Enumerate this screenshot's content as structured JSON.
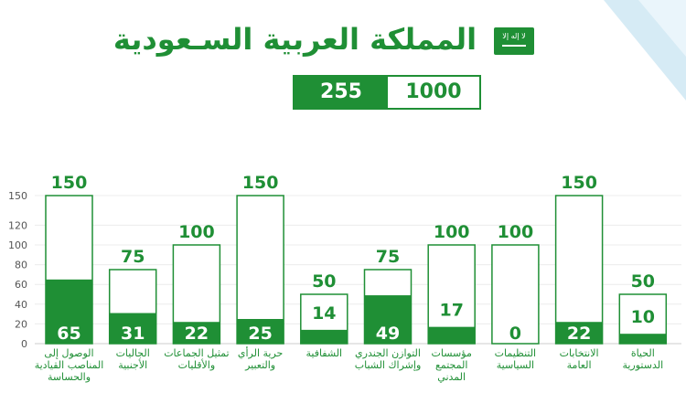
{
  "header": {
    "title": "المملكة العربية السـعودية",
    "flag_script": "لا إله إلا الله محمد رسول الله",
    "totals": {
      "seats": "255",
      "max": "1000"
    }
  },
  "colors": {
    "accent": "#1f8f35",
    "outline": "#1f8f35",
    "corner": "#d6ebf5"
  },
  "chart_data": {
    "type": "bar",
    "title": "",
    "xlabel": "",
    "ylabel": "",
    "ylim": [
      0,
      150
    ],
    "yticks": [
      0,
      20,
      40,
      60,
      80,
      100,
      120,
      150
    ],
    "categories": [
      [
        "الوصول إلى",
        "المناصب القيادية",
        "والحساسة"
      ],
      [
        "الجاليات",
        "الأجنبية"
      ],
      [
        "تمثيل الجماعات",
        "والأقليات"
      ],
      [
        "حرية الرأي",
        "والتعبير"
      ],
      [
        "الشفافية"
      ],
      [
        "التوازن الجندري",
        "وإشراك الشباب"
      ],
      [
        "مؤسسات",
        "المجتمع",
        "المدني"
      ],
      [
        "التنظيمات",
        "السياسية"
      ],
      [
        "الانتخابات",
        "العامة"
      ],
      [
        "الحياة",
        "الدستورية"
      ]
    ],
    "series": [
      {
        "values": [
          150,
          75,
          100,
          150,
          50,
          75,
          100,
          100,
          150,
          50
        ]
      },
      {
        "values": [
          65,
          31,
          22,
          25,
          14,
          49,
          17,
          0,
          22,
          10
        ]
      }
    ]
  }
}
